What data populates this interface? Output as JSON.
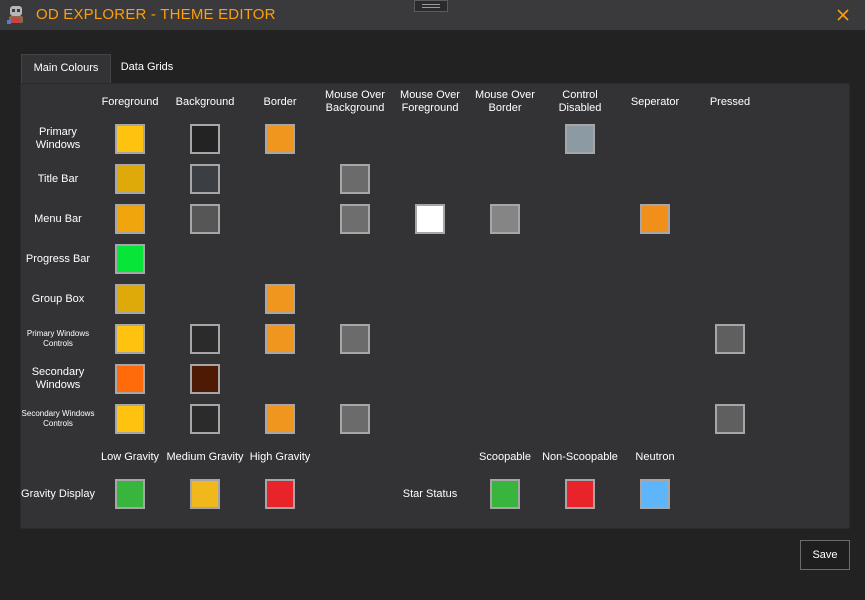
{
  "window": {
    "title": "OD EXPLORER - THEME EDITOR"
  },
  "icons": {
    "app": "commander-avatar-icon",
    "close": "close-icon",
    "grip": "drag-grip-icon"
  },
  "tabs": [
    {
      "label": "Main Colours",
      "selected": true
    },
    {
      "label": "Data Grids",
      "selected": false
    }
  ],
  "columns": [
    "Foreground",
    "Background",
    "Border",
    "Mouse Over Background",
    "Mouse Over Foreground",
    "Mouse Over Border",
    "Control Disabled",
    "Seperator",
    "Pressed"
  ],
  "rows": [
    {
      "label": "Primary Windows",
      "colors": {
        "Foreground": "#ffc20e",
        "Background": "#232323",
        "Border": "#f0951d",
        "Control Disabled": "#8c9aa3"
      }
    },
    {
      "label": "Title Bar",
      "colors": {
        "Foreground": "#ddaa0a",
        "Background": "#3b3e42",
        "Mouse Over Background": "#6b6b6b"
      }
    },
    {
      "label": "Menu Bar",
      "colors": {
        "Foreground": "#f0a50c",
        "Background": "#565656",
        "Mouse Over Background": "#6e6e6e",
        "Mouse Over Foreground": "#ffffff",
        "Mouse Over Border": "#858585",
        "Seperator": "#f0901a"
      }
    },
    {
      "label": "Progress Bar",
      "colors": {
        "Foreground": "#06e538"
      }
    },
    {
      "label": "Group Box",
      "colors": {
        "Foreground": "#ddaa0a",
        "Border": "#f0951d"
      }
    },
    {
      "label": "Primary Windows Controls",
      "colors": {
        "Foreground": "#ffc20e",
        "Background": "#2b2b2b",
        "Border": "#f0951d",
        "Mouse Over Background": "#6b6b6b",
        "Pressed": "#5f5f5f"
      }
    },
    {
      "label": "Secondary Windows",
      "colors": {
        "Foreground": "#ff6a0a",
        "Background": "#4f1a04"
      }
    },
    {
      "label": "Secondary Windows Controls",
      "colors": {
        "Foreground": "#ffc20e",
        "Background": "#2b2b2b",
        "Border": "#f0951d",
        "Mouse Over Background": "#6b6b6b",
        "Pressed": "#5f5f5f"
      }
    }
  ],
  "gravity": {
    "row_label": "Gravity Display",
    "items": [
      {
        "label": "Low Gravity",
        "color": "#38b53c"
      },
      {
        "label": "Medium Gravity",
        "color": "#f0b81a"
      },
      {
        "label": "High Gravity",
        "color": "#e8232a"
      }
    ]
  },
  "star_status": {
    "row_label": "Star Status",
    "items": [
      {
        "label": "Scoopable",
        "color": "#38b53c"
      },
      {
        "label": "Non-Scoopable",
        "color": "#e8232a"
      },
      {
        "label": "Neutron",
        "color": "#5fb5fa"
      }
    ]
  },
  "buttons": {
    "save": "Save"
  },
  "colors": {
    "accent": "#ff9f0a",
    "panel": "#333336",
    "window": "#222223"
  }
}
